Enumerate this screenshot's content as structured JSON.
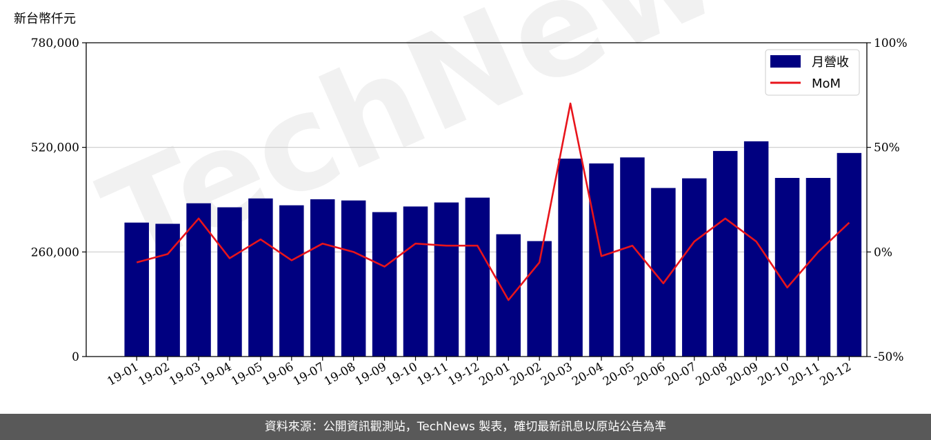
{
  "chart_data": {
    "type": "bar+line",
    "y_unit_label": "新台幣仟元",
    "categories": [
      "19-01",
      "19-02",
      "19-03",
      "19-04",
      "19-05",
      "19-06",
      "19-07",
      "19-08",
      "19-09",
      "19-10",
      "19-11",
      "19-12",
      "20-01",
      "20-02",
      "20-03",
      "20-04",
      "20-05",
      "20-06",
      "20-07",
      "20-08",
      "20-09",
      "20-10",
      "20-11",
      "20-12"
    ],
    "series": [
      {
        "name": "月營收",
        "kind": "bar",
        "axis": "left",
        "color": "#000080",
        "values": [
          333000,
          330000,
          381000,
          371000,
          393000,
          376000,
          391000,
          388000,
          359000,
          373000,
          383000,
          395000,
          304000,
          287000,
          492000,
          480000,
          495000,
          419000,
          443000,
          511000,
          535000,
          444000,
          444000,
          506000
        ]
      },
      {
        "name": "MoM",
        "kind": "line",
        "axis": "right",
        "color": "#e8141b",
        "values": [
          -5,
          -1,
          16,
          -3,
          6,
          -4,
          4,
          0,
          -7,
          4,
          3,
          3,
          -23,
          -5,
          71,
          -2,
          3,
          -15,
          5,
          16,
          5,
          -17,
          0,
          14
        ]
      }
    ],
    "left_axis": {
      "ylim": [
        0,
        780000
      ],
      "ticks": [
        "0",
        "260,000",
        "520,000",
        "780,000"
      ]
    },
    "right_axis": {
      "ylim": [
        -50,
        100
      ],
      "ticks": [
        "-50%",
        "0%",
        "50%",
        "100%"
      ]
    },
    "grid": "horizontal",
    "legend": "top-right"
  },
  "watermark": "TechNews",
  "footer": "資料來源：公開資訊觀測站，TechNews 製表，確切最新訊息以原站公告為準"
}
